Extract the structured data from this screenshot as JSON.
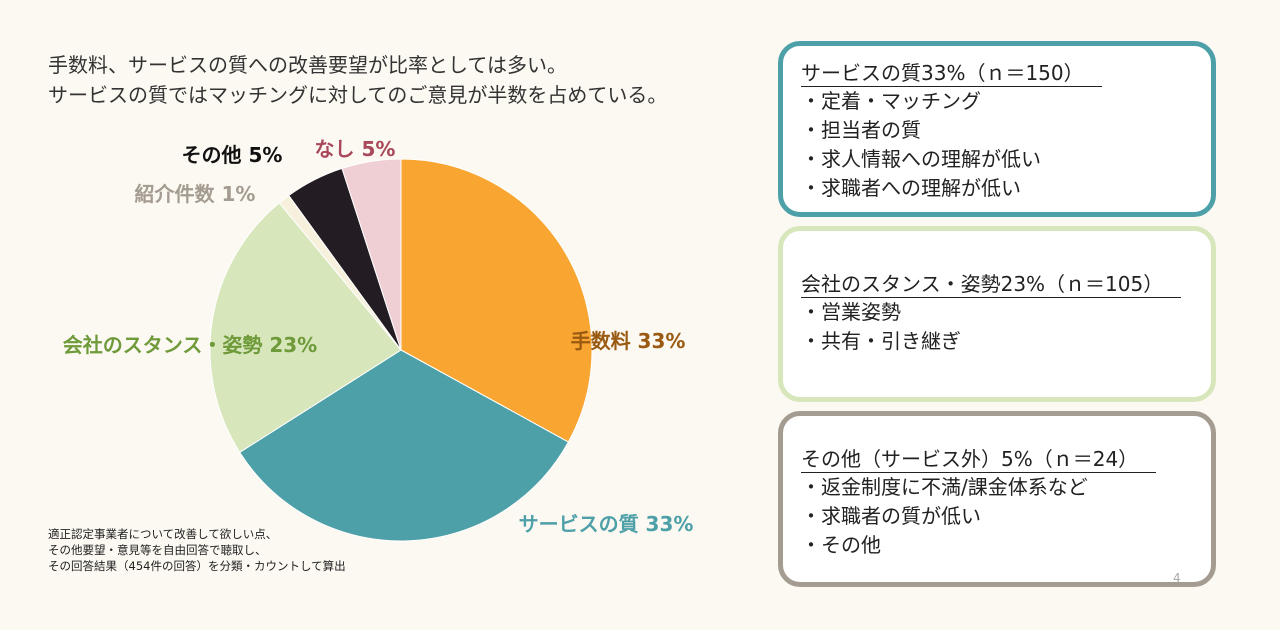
{
  "headline": {
    "line1": "手数料、サービスの質への改善要望が比率としては多い。",
    "line2": "サービスの質ではマッチングに対してのご意見が半数を占めている。"
  },
  "chart_data": {
    "type": "pie",
    "slices": [
      {
        "label": "手数料",
        "pct_label": "33%",
        "value": 33,
        "color": "#f9a531",
        "label_color": "#9a5a11"
      },
      {
        "label": "サービスの質",
        "pct_label": "33%",
        "value": 33,
        "color": "#4ea0a8",
        "label_color": "#4ea0a8"
      },
      {
        "label": "会社のスタンス・姿勢",
        "pct_label": "23%",
        "value": 23,
        "color": "#d8e6bb",
        "label_color": "#6f9a3a"
      },
      {
        "label": "紹介件数",
        "pct_label": "1%",
        "value": 1,
        "color": "#f6f0dd",
        "label_color": "#a49b91"
      },
      {
        "label": "その他",
        "pct_label": "5%",
        "value": 5,
        "color": "#231d23",
        "label_color": "#111111"
      },
      {
        "label": "なし",
        "pct_label": "5%",
        "value": 5,
        "color": "#efcfd4",
        "label_color": "#a8485a"
      }
    ]
  },
  "footnote": {
    "line1": "適正認定事業者について改善して欲しい点、",
    "line2": "その他要望・意見等を自由回答で聴取し、",
    "line3": "その回答結果（454件の回答）を分類・カウントして算出"
  },
  "boxes": {
    "service": {
      "title": "サービスの質33%（ｎ＝150）",
      "items": [
        "・定着・マッチング",
        "・担当者の質",
        "・求人情報への理解が低い",
        "・求職者への理解が低い"
      ]
    },
    "company": {
      "title": "会社のスタンス・姿勢23%（ｎ＝105）",
      "items": [
        "・営業姿勢",
        "・共有・引き継ぎ"
      ]
    },
    "other": {
      "title": "その他（サービス外）5%（ｎ＝24）",
      "items": [
        "・返金制度に不満/課金体系など",
        "・求職者の質が低い",
        "・その他"
      ]
    }
  },
  "page_number": "4",
  "colors": {
    "background": "#fcf9f2",
    "service_border": "#4ea0a8",
    "company_border": "#d8e6bb",
    "other_border": "#a49b91"
  }
}
